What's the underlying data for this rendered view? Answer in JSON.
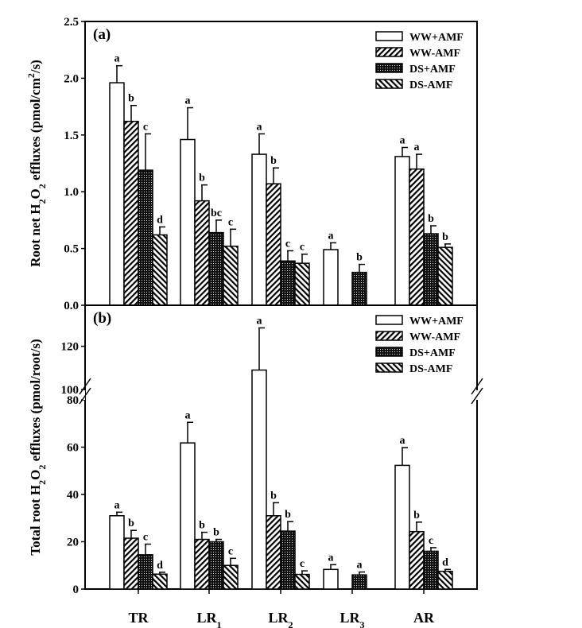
{
  "chart_data": [
    {
      "type": "bar",
      "panel_label": "(a)",
      "ylabel": "Root net H2O2 effluxes (pmol/cm2/s)",
      "ylabel_parts": [
        "Root net H",
        "2",
        "O",
        "2",
        " effluxes (pmol/cm",
        "2",
        "/s)"
      ],
      "ylim": [
        0,
        2.5
      ],
      "yticks": [
        "0.0",
        "0.5",
        "1.0",
        "1.5",
        "2.0",
        "2.5"
      ],
      "categories": [
        "TR",
        "LR1",
        "LR2",
        "LR3",
        "AR"
      ],
      "legend_position": "top-right",
      "series": [
        {
          "name": "WW+AMF",
          "pattern": "open",
          "values": [
            1.96,
            1.46,
            1.33,
            0.49,
            1.31
          ],
          "errors": [
            0.15,
            0.28,
            0.18,
            0.06,
            0.08
          ],
          "letters": [
            "a",
            "a",
            "a",
            "a",
            "a"
          ]
        },
        {
          "name": "WW-AMF",
          "pattern": "diagonal-up",
          "values": [
            1.62,
            0.92,
            1.07,
            null,
            1.2
          ],
          "errors": [
            0.14,
            0.14,
            0.14,
            null,
            0.13
          ],
          "letters": [
            "b",
            "b",
            "b",
            "",
            "a"
          ]
        },
        {
          "name": "DS+AMF",
          "pattern": "dotted-dark",
          "values": [
            1.19,
            0.64,
            0.39,
            0.29,
            0.63
          ],
          "errors": [
            0.32,
            0.11,
            0.09,
            0.07,
            0.07
          ],
          "letters": [
            "c",
            "bc",
            "c",
            "b",
            "b"
          ]
        },
        {
          "name": "DS-AMF",
          "pattern": "diagonal-down",
          "values": [
            0.62,
            0.52,
            0.37,
            null,
            0.51
          ],
          "errors": [
            0.07,
            0.15,
            0.08,
            null,
            0.03
          ],
          "letters": [
            "d",
            "c",
            "c",
            "",
            "b"
          ]
        }
      ]
    },
    {
      "type": "bar",
      "panel_label": "(b)",
      "ylabel": "Total root H2O2 effluxes (pmol/root/s)",
      "ylabel_parts": [
        "Total root H",
        "2",
        "O",
        "2",
        " effluxes (pmol/root/s)"
      ],
      "ylim": [
        0,
        139
      ],
      "axis_break": [
        80,
        100
      ],
      "yticks": [
        "0",
        "20",
        "40",
        "60",
        "80",
        "100",
        "120"
      ],
      "categories": [
        "TR",
        "LR1",
        "LR2",
        "LR3",
        "AR"
      ],
      "category_labels": [
        [
          "TR",
          ""
        ],
        [
          "LR",
          "1"
        ],
        [
          "LR",
          "2"
        ],
        [
          "LR",
          "3"
        ],
        [
          "AR",
          ""
        ]
      ],
      "legend_position": "top-right",
      "series": [
        {
          "name": "WW+AMF",
          "pattern": "open",
          "values": [
            31,
            61.8,
            109,
            8.3,
            52.3
          ],
          "errors": [
            1.5,
            8.7,
            19.5,
            2,
            7.5
          ],
          "letters": [
            "a",
            "a",
            "a",
            "a",
            "a"
          ]
        },
        {
          "name": "WW-AMF",
          "pattern": "diagonal-up",
          "values": [
            21.5,
            21,
            31,
            null,
            24.3
          ],
          "errors": [
            3.3,
            3,
            5.5,
            null,
            4
          ],
          "letters": [
            "b",
            "b",
            "b",
            "",
            "b"
          ]
        },
        {
          "name": "DS+AMF",
          "pattern": "dotted-dark",
          "values": [
            14.5,
            20,
            24.5,
            6,
            16
          ],
          "errors": [
            4.5,
            1,
            4,
            1.2,
            1.5
          ],
          "letters": [
            "c",
            "b",
            "b",
            "a",
            "c"
          ]
        },
        {
          "name": "DS-AMF",
          "pattern": "diagonal-down",
          "values": [
            6.3,
            10,
            6.2,
            null,
            7.5
          ],
          "errors": [
            0.8,
            3,
            1.5,
            null,
            0.8
          ],
          "letters": [
            "d",
            "c",
            "c",
            "",
            "d"
          ]
        }
      ]
    }
  ]
}
